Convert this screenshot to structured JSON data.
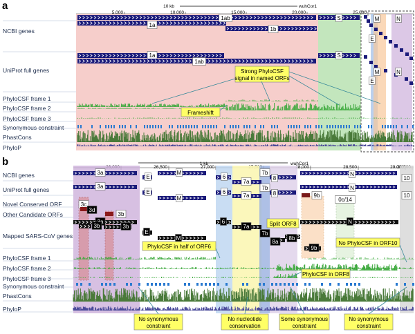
{
  "panel_a": {
    "letter": "a",
    "scale": {
      "label": "10 kb",
      "assembly": "wuhCor1"
    },
    "ticks": [
      "5,000",
      "10,000",
      "15,000",
      "20,000",
      "25,000"
    ],
    "tracks": {
      "ncbi": "NCBI genes",
      "uniprot": "UniProt full genes",
      "frame1": "PhyloCSF frame 1",
      "frame2": "PhyloCSF frame 2",
      "frame3": "PhyloCSF frame 3",
      "syn": "Synonymous constraint",
      "phastcons": "PhastCons",
      "phylop": "PhyloP"
    },
    "genes": {
      "g1a": "1a",
      "g1b": "1b",
      "g1ab": "1ab",
      "S": "S",
      "E": "E",
      "M": "M",
      "N": "N"
    },
    "callouts": {
      "strong": "Strong PhyloCSF signal in named ORFs",
      "frameshift": "Frameshift"
    }
  },
  "panel_b": {
    "letter": "b",
    "scale": {
      "label": "1 kb",
      "assembly": "wuhCor1"
    },
    "ticks": [
      "26,000",
      "26,500",
      "27,000",
      "27,500",
      "28,000",
      "28,500",
      "29,000",
      "29,500"
    ],
    "tracks": {
      "ncbi": "NCBI genes",
      "uniprot": "UniProt full genes",
      "novel": "Novel Conserved ORF",
      "candidate": "Other Candidate ORFs",
      "sarscov": "Mapped SARS-CoV genes",
      "frame1": "PhyloCSF frame 1",
      "frame2": "PhyloCSF frame 2",
      "frame3": "PhyloCSF frame 3",
      "syn": "Synonymous constraint",
      "phastcons": "PhastCons",
      "phylop": "PhyloP"
    },
    "genes": {
      "g3a": "3a",
      "E": "E",
      "M": "M",
      "g6": "6",
      "g7a": "7a",
      "g7b": "7b",
      "g8": "8",
      "N": "N",
      "g10": "10",
      "g3c": "3c",
      "g3d": "3d",
      "g3b": "3b",
      "g9b": "9b",
      "g0c14": "0c/14",
      "g8a": "8a",
      "g8b": "8b"
    },
    "callouts": {
      "half6": "PhyloCSF in half of ORF6",
      "split8": "Split ORF8",
      "noorf10": "No PhyloCSF in ORF10",
      "in8": "PhyloCSF in ORF8",
      "nosyn1": "No synonymous constraint",
      "nonuc": "No nucleotide conservation",
      "somesyn": "Some synonymous constraint",
      "nosyn2": "No synonymous constraint"
    }
  },
  "colors": {
    "gene": "#1a1a7a",
    "callout_fill": "#ffff66",
    "pink": "#f4c6c2",
    "green": "#b8e2b2",
    "purple": "#cdb0db",
    "blue": "#bcd4f0",
    "yellow": "#fbf6b4",
    "orange": "#f8c89a",
    "phylocsf": "#3aa83a",
    "phastcons": "#4a7a3a"
  }
}
